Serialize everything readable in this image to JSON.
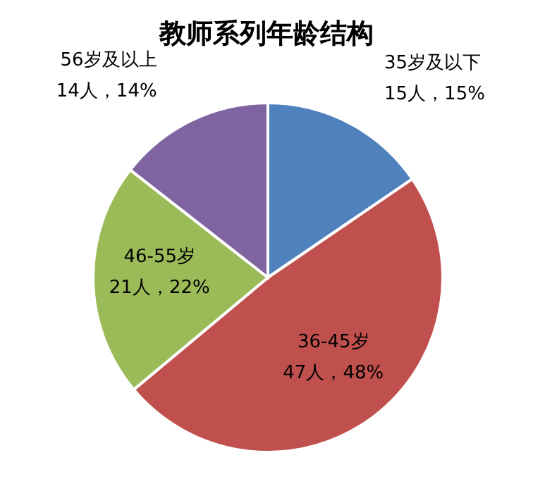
{
  "chart_data": {
    "type": "pie",
    "title": "教师系列年龄结构",
    "categories": [
      "35岁及以下",
      "36-45岁",
      "46-55岁",
      "56岁及以上"
    ],
    "values": [
      15,
      47,
      21,
      14
    ],
    "value_labels": [
      "15人，15%",
      "47人，48%",
      "21人，22%",
      "14人，14%"
    ],
    "colors": [
      "#4f81bd",
      "#c0504d",
      "#9bbb59",
      "#8064a2"
    ]
  }
}
